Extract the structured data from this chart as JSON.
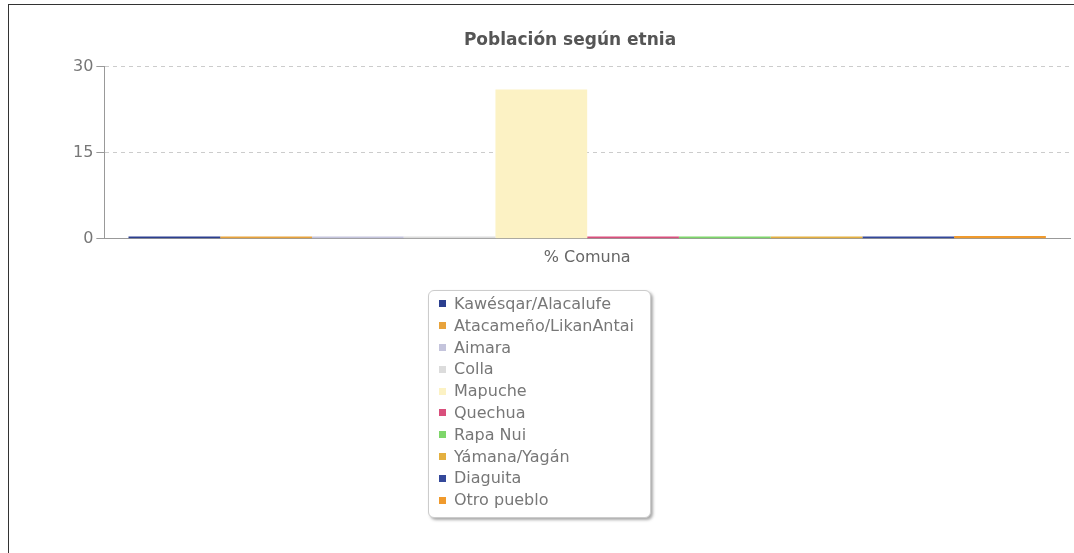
{
  "chart_data": {
    "type": "bar",
    "title": "Población según etnia",
    "categories": [
      "% Comuna"
    ],
    "series": [
      {
        "name": "Kawésqar/Alacalufe",
        "color": "#2b3f8f",
        "values": [
          0.4
        ]
      },
      {
        "name": "Atacameño/LikanAntai",
        "color": "#e8a33c",
        "values": [
          0.4
        ]
      },
      {
        "name": "Aimara",
        "color": "#c4c4dc",
        "values": [
          0.4
        ]
      },
      {
        "name": "Colla",
        "color": "#dcdcdc",
        "values": [
          0.4
        ]
      },
      {
        "name": "Mapuche",
        "color": "#fcf2c4",
        "values": [
          26
        ]
      },
      {
        "name": "Quechua",
        "color": "#d94f7c",
        "values": [
          0.4
        ]
      },
      {
        "name": "Rapa Nui",
        "color": "#7ed66a",
        "values": [
          0.4
        ]
      },
      {
        "name": "Yámana/Yagán",
        "color": "#e4b040",
        "values": [
          0.4
        ]
      },
      {
        "name": "Diaguita",
        "color": "#34489a",
        "values": [
          0.4
        ]
      },
      {
        "name": "Otro pueblo",
        "color": "#f09a2c",
        "values": [
          0.5
        ]
      }
    ],
    "ylim": [
      0,
      30
    ],
    "yticks": [
      0,
      15,
      30
    ],
    "grid": "y",
    "legend": "bottom"
  }
}
